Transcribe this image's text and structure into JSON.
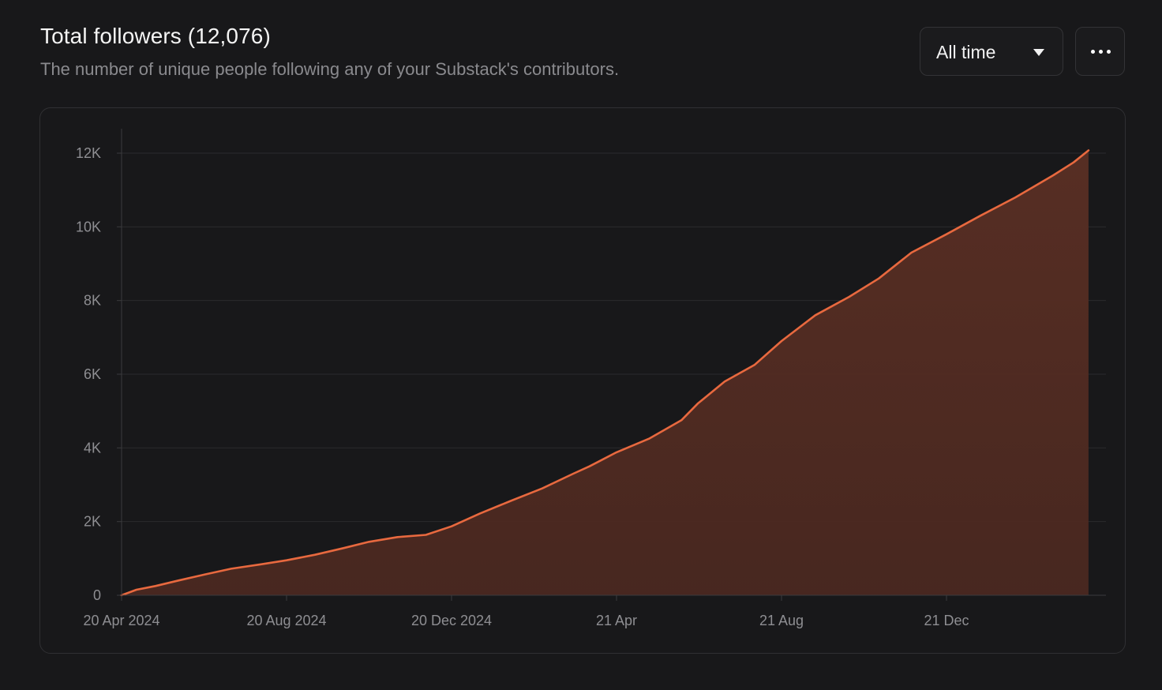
{
  "header": {
    "title": "Total followers (12,076)",
    "subtitle": "The number of unique people following any of your Substack's contributors."
  },
  "controls": {
    "range_label": "All time",
    "range_icon": "caret-down-icon",
    "more_icon": "more-horizontal-icon"
  },
  "colors": {
    "line": "#e8693f",
    "area": "#532c22",
    "grid": "#2a2a2d",
    "axis": "#3a3a3d",
    "tick_text": "#8e8e92",
    "background": "#18181a"
  },
  "chart_data": {
    "type": "area",
    "title": "Total followers (12,076)",
    "xlabel": "",
    "ylabel": "",
    "ylim": [
      0,
      12500
    ],
    "xlim": [
      "2024-04-20",
      "2026-04-05"
    ],
    "grid": true,
    "legend": "none",
    "yticks": [
      {
        "value": 0,
        "label": "0"
      },
      {
        "value": 2000,
        "label": "2K"
      },
      {
        "value": 4000,
        "label": "4K"
      },
      {
        "value": 6000,
        "label": "6K"
      },
      {
        "value": 8000,
        "label": "8K"
      },
      {
        "value": 10000,
        "label": "10K"
      },
      {
        "value": 12000,
        "label": "12K"
      }
    ],
    "xticks": [
      {
        "date": "2024-04-20",
        "label": "20 Apr 2024"
      },
      {
        "date": "2024-08-20",
        "label": "20 Aug 2024"
      },
      {
        "date": "2024-12-20",
        "label": "20 Dec 2024"
      },
      {
        "date": "2025-04-21",
        "label": "21 Apr"
      },
      {
        "date": "2025-08-21",
        "label": "21 Aug"
      },
      {
        "date": "2025-12-21",
        "label": "21 Dec"
      }
    ],
    "series": [
      {
        "points": [
          {
            "x": "2024-04-20",
            "y": 0
          },
          {
            "x": "2024-05-01",
            "y": 150
          },
          {
            "x": "2024-05-15",
            "y": 250
          },
          {
            "x": "2024-06-01",
            "y": 400
          },
          {
            "x": "2024-06-20",
            "y": 560
          },
          {
            "x": "2024-07-10",
            "y": 720
          },
          {
            "x": "2024-08-01",
            "y": 840
          },
          {
            "x": "2024-08-20",
            "y": 950
          },
          {
            "x": "2024-09-10",
            "y": 1100
          },
          {
            "x": "2024-10-01",
            "y": 1280
          },
          {
            "x": "2024-10-20",
            "y": 1450
          },
          {
            "x": "2024-11-10",
            "y": 1580
          },
          {
            "x": "2024-12-01",
            "y": 1640
          },
          {
            "x": "2024-12-20",
            "y": 1870
          },
          {
            "x": "2025-01-10",
            "y": 2220
          },
          {
            "x": "2025-02-01",
            "y": 2550
          },
          {
            "x": "2025-02-25",
            "y": 2900
          },
          {
            "x": "2025-03-20",
            "y": 3300
          },
          {
            "x": "2025-04-01",
            "y": 3500
          },
          {
            "x": "2025-04-21",
            "y": 3880
          },
          {
            "x": "2025-05-15",
            "y": 4250
          },
          {
            "x": "2025-06-08",
            "y": 4750
          },
          {
            "x": "2025-06-20",
            "y": 5200
          },
          {
            "x": "2025-07-10",
            "y": 5800
          },
          {
            "x": "2025-08-01",
            "y": 6250
          },
          {
            "x": "2025-08-21",
            "y": 6900
          },
          {
            "x": "2025-09-15",
            "y": 7600
          },
          {
            "x": "2025-10-10",
            "y": 8100
          },
          {
            "x": "2025-11-01",
            "y": 8600
          },
          {
            "x": "2025-11-25",
            "y": 9300
          },
          {
            "x": "2025-12-21",
            "y": 9800
          },
          {
            "x": "2026-01-15",
            "y": 10300
          },
          {
            "x": "2026-02-10",
            "y": 10800
          },
          {
            "x": "2026-03-10",
            "y": 11400
          },
          {
            "x": "2026-03-25",
            "y": 11750
          },
          {
            "x": "2026-04-05",
            "y": 12076
          }
        ]
      }
    ]
  }
}
